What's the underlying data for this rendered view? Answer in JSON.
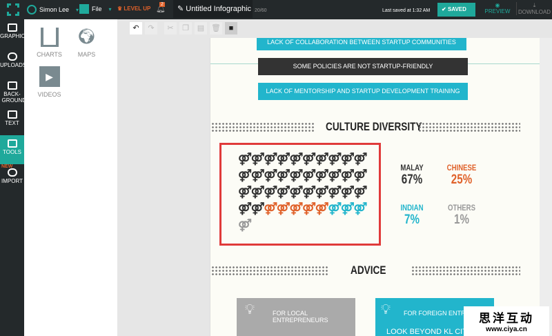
{
  "topbar": {
    "user": "Simon Lee",
    "file": "File",
    "level_up": "LEVEL UP",
    "notifications": "2",
    "doc_title": "Untitled Infographic",
    "char_count": "20/60",
    "last_saved": "Last saved at 1:32 AM",
    "saved": "SAVED",
    "preview": "PREVIEW",
    "download": "DOWNLOAD"
  },
  "sidebar": {
    "items": [
      {
        "label": "GRAPHICS"
      },
      {
        "label": "UPLOADS"
      },
      {
        "label": "BACK-GROUND"
      },
      {
        "label": "TEXT"
      },
      {
        "label": "TOOLS"
      },
      {
        "label": "IMPORT",
        "badge": "NEW"
      }
    ]
  },
  "panel": {
    "items": [
      {
        "label": "CHARTS"
      },
      {
        "label": "MAPS"
      },
      {
        "label": "VIDEOS"
      }
    ]
  },
  "canvas": {
    "bars": [
      "LACK OF COLLABORATION BETWEEN STARTUP COMMUNITIES",
      "SOME POLICIES ARE NOT STARTUP-FRIENDLY",
      "LACK OF MENTORSHIP AND STARTUP DEVELOPMENT TRAINING"
    ],
    "culture_title": "CULTURE DIVERSITY",
    "icon_counts": {
      "dark": 32,
      "orange": 5,
      "cyan": 3,
      "gray": 1
    },
    "colors": {
      "dark": "#333333",
      "orange": "#e0622b",
      "cyan": "#22b5cc",
      "gray": "#999999",
      "teal": "#1fa99b"
    },
    "stats": [
      {
        "label": "MALAY",
        "value": "67%",
        "color": "#333333"
      },
      {
        "label": "CHINESE",
        "value": "25%",
        "color": "#e0622b"
      },
      {
        "label": "INDIAN",
        "value": "7%",
        "color": "#22b5cc"
      },
      {
        "label": "OTHERS",
        "value": "1%",
        "color": "#999999"
      }
    ],
    "advice_title": "ADVICE",
    "cards": [
      {
        "label": "FOR LOCAL ENTREPRENEURS"
      },
      {
        "label": "FOR FOREIGN ENTREPRENEURS",
        "sub": "LOOK BEYOND KL CITY CENTER"
      }
    ]
  },
  "watermark": {
    "line1": "思洋互动",
    "line2": "www.ciya.cn"
  }
}
